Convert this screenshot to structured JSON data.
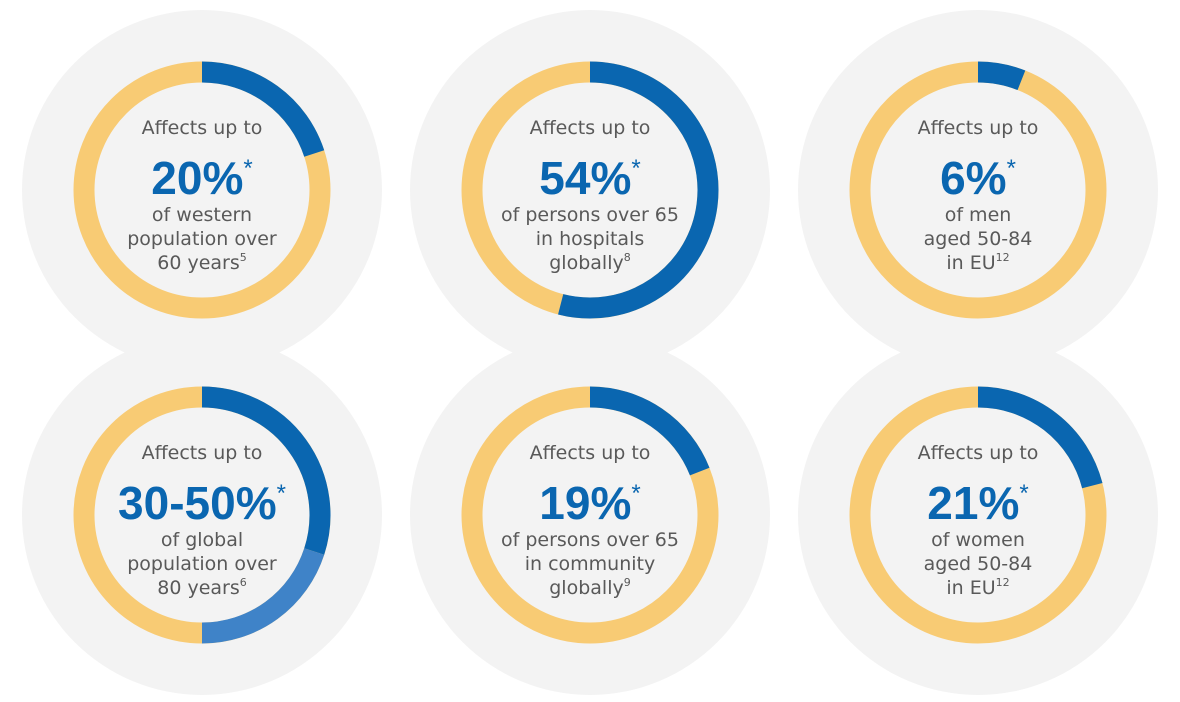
{
  "chart_data": [
    {
      "type": "donut",
      "intro": "Affects up to",
      "headline": "20%",
      "asterisk": "*",
      "caption": [
        "of western",
        "population over",
        "60 years"
      ],
      "footnote": "5",
      "values": [
        20
      ],
      "colors": [
        "#0a66b0"
      ],
      "ring_color": "#f8cb74"
    },
    {
      "type": "donut",
      "intro": "Affects up to",
      "headline": "54%",
      "asterisk": "*",
      "caption": [
        "of persons over 65",
        "in hospitals",
        "globally"
      ],
      "footnote": "8",
      "values": [
        54
      ],
      "colors": [
        "#0a66b0"
      ],
      "ring_color": "#f8cb74"
    },
    {
      "type": "donut",
      "intro": "Affects up to",
      "headline": "6%",
      "asterisk": "*",
      "caption": [
        "of men",
        "aged 50-84",
        "in EU"
      ],
      "footnote": "12",
      "values": [
        6
      ],
      "colors": [
        "#0a66b0"
      ],
      "ring_color": "#f8cb74"
    },
    {
      "type": "donut",
      "intro": "Affects up to",
      "headline": "30-50%",
      "asterisk": "*",
      "caption": [
        "of global",
        "population over",
        "80 years"
      ],
      "footnote": "6",
      "values": [
        30,
        50
      ],
      "colors": [
        "#0a66b0",
        "#3f83c8"
      ],
      "ring_color": "#f8cb74"
    },
    {
      "type": "donut",
      "intro": "Affects up to",
      "headline": "19%",
      "asterisk": "*",
      "caption": [
        "of persons over 65",
        "in community",
        "globally"
      ],
      "footnote": "9",
      "values": [
        19
      ],
      "colors": [
        "#0a66b0"
      ],
      "ring_color": "#f8cb74"
    },
    {
      "type": "donut",
      "intro": "Affects up to",
      "headline": "21%",
      "asterisk": "*",
      "caption": [
        "of women",
        "aged 50-84",
        "in EU"
      ],
      "footnote": "12",
      "values": [
        21
      ],
      "colors": [
        "#0a66b0"
      ],
      "ring_color": "#f8cb74"
    }
  ]
}
